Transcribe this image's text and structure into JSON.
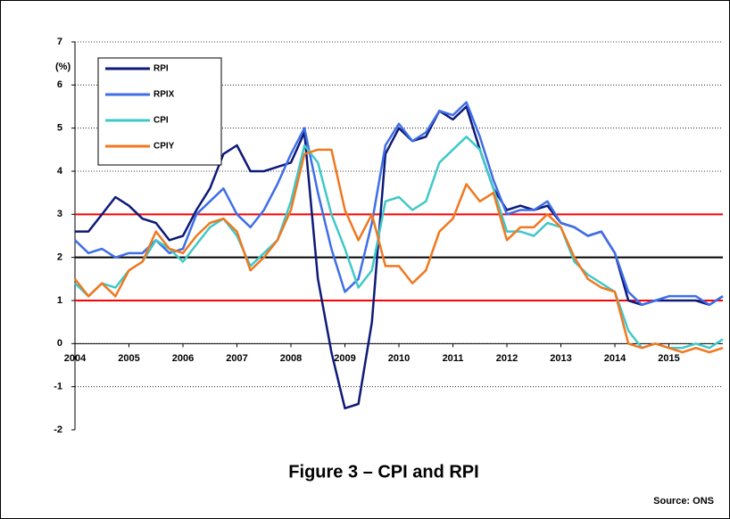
{
  "chart_data": {
    "type": "line",
    "title": "Figure 3 – CPI and RPI",
    "source": "Source: ONS",
    "y_label": "(%)",
    "x": [
      2004,
      2004.25,
      2004.5,
      2004.75,
      2005,
      2005.25,
      2005.5,
      2005.75,
      2006,
      2006.25,
      2006.5,
      2006.75,
      2007,
      2007.25,
      2007.5,
      2007.75,
      2008,
      2008.25,
      2008.5,
      2008.75,
      2009,
      2009.25,
      2009.5,
      2009.75,
      2010,
      2010.25,
      2010.5,
      2010.75,
      2011,
      2011.25,
      2011.5,
      2011.75,
      2012,
      2012.25,
      2012.5,
      2012.75,
      2013,
      2013.25,
      2013.5,
      2013.75,
      2014,
      2014.25,
      2014.5,
      2014.75,
      2015,
      2015.25,
      2015.5,
      2015.75,
      2016
    ],
    "series": [
      {
        "name": "RPI",
        "color": "#0d1a78",
        "values": [
          2.6,
          2.6,
          3.0,
          3.4,
          3.2,
          2.9,
          2.8,
          2.4,
          2.5,
          3.1,
          3.6,
          4.4,
          4.6,
          4.0,
          4.0,
          4.1,
          4.2,
          4.9,
          1.5,
          -0.2,
          -1.5,
          -1.4,
          0.5,
          4.4,
          5.0,
          4.7,
          4.8,
          5.4,
          5.2,
          5.5,
          4.5,
          3.6,
          3.1,
          3.2,
          3.1,
          3.2,
          2.8,
          2.7,
          2.5,
          2.6,
          2.1,
          1.0,
          0.9,
          1.0,
          1.0,
          1.0,
          1.0,
          0.9,
          1.1
        ]
      },
      {
        "name": "RPIX",
        "color": "#3f6ee8",
        "values": [
          2.4,
          2.1,
          2.2,
          2.0,
          2.1,
          2.1,
          2.4,
          2.1,
          2.2,
          3.0,
          3.3,
          3.6,
          3.0,
          2.7,
          3.1,
          3.7,
          4.4,
          5.0,
          3.5,
          2.2,
          1.2,
          1.5,
          2.8,
          4.6,
          5.1,
          4.7,
          4.9,
          5.4,
          5.3,
          5.6,
          4.8,
          3.8,
          3.0,
          3.1,
          3.1,
          3.3,
          2.8,
          2.7,
          2.5,
          2.6,
          2.1,
          1.2,
          0.9,
          1.0,
          1.1,
          1.1,
          1.1,
          0.9,
          1.1
        ]
      },
      {
        "name": "CPI",
        "color": "#40c8c8",
        "values": [
          1.4,
          1.1,
          1.4,
          1.3,
          1.7,
          1.9,
          2.4,
          2.2,
          1.9,
          2.3,
          2.7,
          2.9,
          2.5,
          1.8,
          2.1,
          2.4,
          3.3,
          4.6,
          4.2,
          3.0,
          2.2,
          1.3,
          1.7,
          3.3,
          3.4,
          3.1,
          3.3,
          4.2,
          4.5,
          4.8,
          4.5,
          3.6,
          2.6,
          2.6,
          2.5,
          2.8,
          2.7,
          1.9,
          1.6,
          1.4,
          1.2,
          0.3,
          -0.1,
          0.0,
          -0.1,
          -0.1,
          0.0,
          -0.1,
          0.1
        ]
      },
      {
        "name": "CPIY",
        "color": "#f07820",
        "values": [
          1.5,
          1.1,
          1.4,
          1.1,
          1.7,
          1.9,
          2.6,
          2.2,
          2.1,
          2.5,
          2.8,
          2.9,
          2.6,
          1.7,
          2.0,
          2.4,
          3.1,
          4.4,
          4.5,
          4.5,
          3.1,
          2.4,
          3.0,
          1.8,
          1.8,
          1.4,
          1.7,
          2.6,
          2.9,
          3.7,
          3.3,
          3.5,
          2.4,
          2.7,
          2.7,
          3.0,
          2.7,
          2.0,
          1.5,
          1.3,
          1.2,
          0.0,
          -0.1,
          0.0,
          -0.1,
          -0.2,
          -0.1,
          -0.2,
          -0.1
        ]
      }
    ],
    "reference_lines": [
      {
        "value": 1,
        "color": "#ff0000"
      },
      {
        "value": 3,
        "color": "#ff0000"
      },
      {
        "value": 2,
        "color": "#000000"
      }
    ],
    "xlim": [
      2004,
      2016
    ],
    "xticks": [
      2004,
      2005,
      2006,
      2007,
      2008,
      2009,
      2010,
      2011,
      2012,
      2013,
      2014,
      2015
    ],
    "ylim": [
      -2,
      7
    ],
    "yticks": [
      -2,
      -1,
      0,
      1,
      2,
      3,
      4,
      5,
      6,
      7
    ],
    "grid": true,
    "legend": "upper left"
  }
}
